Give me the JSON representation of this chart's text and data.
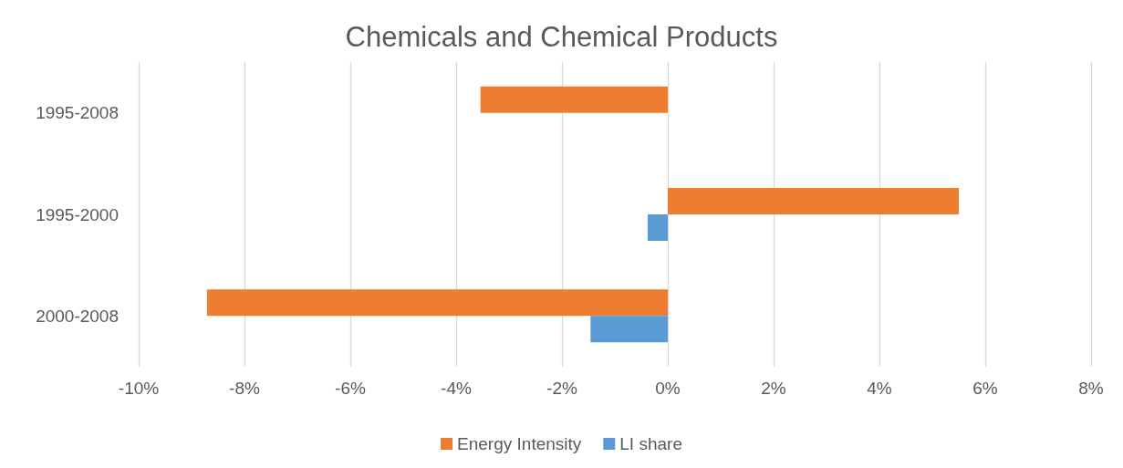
{
  "chart_data": {
    "type": "bar",
    "title": "Chemicals and Chemical Products",
    "orientation": "horizontal",
    "categories": [
      "1995-2008",
      "1995-2000",
      "2000-2008"
    ],
    "series": [
      {
        "name": "Energy Intensity",
        "color": "#ed7d31",
        "values": [
          -3.54,
          5.5,
          -8.71
        ]
      },
      {
        "name": "LI share",
        "color": "#5b9bd5",
        "values": [
          null,
          -0.38,
          -1.46
        ]
      }
    ],
    "xlim": [
      -10,
      8
    ],
    "xticks": [
      {
        "value": -10,
        "label": "-10%"
      },
      {
        "value": -8,
        "label": "-8%"
      },
      {
        "value": -6,
        "label": "-6%"
      },
      {
        "value": -4,
        "label": "-4%"
      },
      {
        "value": -2,
        "label": "-2%"
      },
      {
        "value": 0,
        "label": "0%"
      },
      {
        "value": 2,
        "label": "2%"
      },
      {
        "value": 4,
        "label": "4%"
      },
      {
        "value": 6,
        "label": "6%"
      },
      {
        "value": 8,
        "label": "8%"
      }
    ],
    "grid": "x",
    "legend": "bottom"
  }
}
